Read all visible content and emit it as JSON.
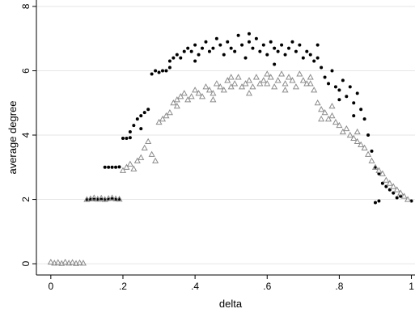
{
  "chart_data": {
    "type": "scatter",
    "xlabel": "delta",
    "ylabel": "average degree",
    "xlim": [
      -0.04,
      1.01
    ],
    "ylim": [
      -0.35,
      8.2
    ],
    "x_ticks": [
      {
        "value": 0,
        "label": "0"
      },
      {
        "value": 0.2,
        "label": ".2"
      },
      {
        "value": 0.4,
        "label": ".4"
      },
      {
        "value": 0.6,
        "label": ".6"
      },
      {
        "value": 0.8,
        "label": ".8"
      },
      {
        "value": 1,
        "label": "1"
      }
    ],
    "y_ticks": [
      {
        "value": 0,
        "label": "0"
      },
      {
        "value": 2,
        "label": "2"
      },
      {
        "value": 4,
        "label": "4"
      },
      {
        "value": 6,
        "label": "6"
      },
      {
        "value": 8,
        "label": "8"
      }
    ],
    "grid": {
      "horizontal": true,
      "color": "#e6e6e6"
    },
    "legend": "none",
    "series": [
      {
        "marker": "circle",
        "color": "#000000",
        "points": [
          [
            0.1,
            2.0
          ],
          [
            0.11,
            2.0
          ],
          [
            0.12,
            2.0
          ],
          [
            0.13,
            2.0
          ],
          [
            0.14,
            2.0
          ],
          [
            0.15,
            2.0
          ],
          [
            0.16,
            2.0
          ],
          [
            0.17,
            2.02
          ],
          [
            0.18,
            2.0
          ],
          [
            0.19,
            2.01
          ],
          [
            0.15,
            3.0
          ],
          [
            0.16,
            3.0
          ],
          [
            0.17,
            3.0
          ],
          [
            0.18,
            3.0
          ],
          [
            0.19,
            3.01
          ],
          [
            0.2,
            3.9
          ],
          [
            0.21,
            3.9
          ],
          [
            0.22,
            3.92
          ],
          [
            0.22,
            4.1
          ],
          [
            0.23,
            4.3
          ],
          [
            0.24,
            4.5
          ],
          [
            0.25,
            4.6
          ],
          [
            0.25,
            4.2
          ],
          [
            0.26,
            4.7
          ],
          [
            0.27,
            4.8
          ],
          [
            0.28,
            5.9
          ],
          [
            0.29,
            6.0
          ],
          [
            0.3,
            5.95
          ],
          [
            0.31,
            6.0
          ],
          [
            0.32,
            6.0
          ],
          [
            0.33,
            6.1
          ],
          [
            0.34,
            6.4
          ],
          [
            0.35,
            6.5
          ],
          [
            0.36,
            6.4
          ],
          [
            0.37,
            6.6
          ],
          [
            0.38,
            6.7
          ],
          [
            0.39,
            6.6
          ],
          [
            0.4,
            6.8
          ],
          [
            0.41,
            6.5
          ],
          [
            0.42,
            6.7
          ],
          [
            0.43,
            6.9
          ],
          [
            0.44,
            6.6
          ],
          [
            0.45,
            6.7
          ],
          [
            0.46,
            7.0
          ],
          [
            0.47,
            6.8
          ],
          [
            0.48,
            6.5
          ],
          [
            0.49,
            6.9
          ],
          [
            0.5,
            6.7
          ],
          [
            0.51,
            6.6
          ],
          [
            0.52,
            7.1
          ],
          [
            0.53,
            6.8
          ],
          [
            0.54,
            6.4
          ],
          [
            0.55,
            6.9
          ],
          [
            0.56,
            6.7
          ],
          [
            0.57,
            7.0
          ],
          [
            0.58,
            6.6
          ],
          [
            0.59,
            6.8
          ],
          [
            0.6,
            6.5
          ],
          [
            0.61,
            6.9
          ],
          [
            0.62,
            6.7
          ],
          [
            0.63,
            6.6
          ],
          [
            0.64,
            6.8
          ],
          [
            0.65,
            6.5
          ],
          [
            0.66,
            6.7
          ],
          [
            0.67,
            6.9
          ],
          [
            0.68,
            6.6
          ],
          [
            0.69,
            6.8
          ],
          [
            0.7,
            6.4
          ],
          [
            0.71,
            6.6
          ],
          [
            0.72,
            6.5
          ],
          [
            0.73,
            6.3
          ],
          [
            0.74,
            6.4
          ],
          [
            0.75,
            6.1
          ],
          [
            0.76,
            5.8
          ],
          [
            0.77,
            5.6
          ],
          [
            0.78,
            6.0
          ],
          [
            0.79,
            5.5
          ],
          [
            0.8,
            5.4
          ],
          [
            0.81,
            5.7
          ],
          [
            0.82,
            5.2
          ],
          [
            0.83,
            5.5
          ],
          [
            0.84,
            5.0
          ],
          [
            0.85,
            5.3
          ],
          [
            0.86,
            4.8
          ],
          [
            0.87,
            4.5
          ],
          [
            0.88,
            4.0
          ],
          [
            0.89,
            3.5
          ],
          [
            0.9,
            3.0
          ],
          [
            0.91,
            2.8
          ],
          [
            0.92,
            2.5
          ],
          [
            0.93,
            2.4
          ],
          [
            0.94,
            2.3
          ],
          [
            0.95,
            2.2
          ],
          [
            0.97,
            2.1
          ],
          [
            1.0,
            1.95
          ],
          [
            0.9,
            1.9
          ],
          [
            0.91,
            1.95
          ],
          [
            0.96,
            2.05
          ],
          [
            0.62,
            6.2
          ],
          [
            0.4,
            6.3
          ],
          [
            0.55,
            7.15
          ],
          [
            0.74,
            6.8
          ],
          [
            0.84,
            4.6
          ],
          [
            0.8,
            5.1
          ],
          [
            0.33,
            6.3
          ]
        ]
      },
      {
        "marker": "triangle",
        "color": "#8c8c8c",
        "points": [
          [
            0.0,
            0.05
          ],
          [
            0.01,
            0.02
          ],
          [
            0.02,
            0.04
          ],
          [
            0.03,
            0.01
          ],
          [
            0.04,
            0.05
          ],
          [
            0.05,
            0.02
          ],
          [
            0.06,
            0.04
          ],
          [
            0.07,
            0.01
          ],
          [
            0.08,
            0.03
          ],
          [
            0.09,
            0.02
          ],
          [
            0.1,
            2.0
          ],
          [
            0.11,
            2.02
          ],
          [
            0.12,
            2.05
          ],
          [
            0.13,
            2.01
          ],
          [
            0.14,
            2.04
          ],
          [
            0.15,
            2.0
          ],
          [
            0.16,
            2.03
          ],
          [
            0.17,
            2.05
          ],
          [
            0.18,
            2.02
          ],
          [
            0.19,
            2.01
          ],
          [
            0.2,
            2.9
          ],
          [
            0.21,
            3.0
          ],
          [
            0.22,
            3.1
          ],
          [
            0.23,
            2.95
          ],
          [
            0.24,
            3.2
          ],
          [
            0.25,
            3.3
          ],
          [
            0.26,
            3.6
          ],
          [
            0.27,
            3.8
          ],
          [
            0.28,
            3.4
          ],
          [
            0.29,
            3.2
          ],
          [
            0.3,
            4.4
          ],
          [
            0.31,
            4.5
          ],
          [
            0.32,
            4.6
          ],
          [
            0.33,
            4.7
          ],
          [
            0.34,
            5.0
          ],
          [
            0.35,
            5.1
          ],
          [
            0.36,
            5.2
          ],
          [
            0.37,
            5.3
          ],
          [
            0.38,
            5.1
          ],
          [
            0.39,
            5.2
          ],
          [
            0.4,
            5.4
          ],
          [
            0.41,
            5.3
          ],
          [
            0.42,
            5.2
          ],
          [
            0.43,
            5.5
          ],
          [
            0.44,
            5.4
          ],
          [
            0.45,
            5.3
          ],
          [
            0.46,
            5.6
          ],
          [
            0.47,
            5.5
          ],
          [
            0.48,
            5.4
          ],
          [
            0.49,
            5.7
          ],
          [
            0.5,
            5.5
          ],
          [
            0.51,
            5.6
          ],
          [
            0.52,
            5.8
          ],
          [
            0.53,
            5.5
          ],
          [
            0.54,
            5.6
          ],
          [
            0.55,
            5.7
          ],
          [
            0.56,
            5.5
          ],
          [
            0.57,
            5.8
          ],
          [
            0.58,
            5.6
          ],
          [
            0.59,
            5.7
          ],
          [
            0.6,
            5.6
          ],
          [
            0.61,
            5.8
          ],
          [
            0.62,
            5.5
          ],
          [
            0.63,
            5.7
          ],
          [
            0.64,
            5.9
          ],
          [
            0.65,
            5.6
          ],
          [
            0.66,
            5.8
          ],
          [
            0.67,
            5.7
          ],
          [
            0.68,
            5.5
          ],
          [
            0.69,
            5.9
          ],
          [
            0.7,
            5.7
          ],
          [
            0.71,
            5.6
          ],
          [
            0.72,
            5.8
          ],
          [
            0.73,
            5.4
          ],
          [
            0.74,
            5.0
          ],
          [
            0.75,
            4.8
          ],
          [
            0.76,
            4.7
          ],
          [
            0.77,
            4.5
          ],
          [
            0.78,
            4.6
          ],
          [
            0.79,
            4.4
          ],
          [
            0.8,
            4.3
          ],
          [
            0.81,
            4.1
          ],
          [
            0.82,
            4.2
          ],
          [
            0.83,
            4.0
          ],
          [
            0.84,
            3.9
          ],
          [
            0.85,
            3.8
          ],
          [
            0.86,
            3.7
          ],
          [
            0.87,
            3.6
          ],
          [
            0.88,
            3.4
          ],
          [
            0.89,
            3.2
          ],
          [
            0.9,
            3.0
          ],
          [
            0.91,
            2.9
          ],
          [
            0.92,
            2.8
          ],
          [
            0.93,
            2.6
          ],
          [
            0.94,
            2.5
          ],
          [
            0.95,
            2.4
          ],
          [
            0.96,
            2.3
          ],
          [
            0.97,
            2.2
          ],
          [
            0.98,
            2.1
          ],
          [
            0.99,
            2.0
          ],
          [
            0.35,
            4.9
          ],
          [
            0.45,
            5.1
          ],
          [
            0.55,
            5.3
          ],
          [
            0.65,
            5.4
          ],
          [
            0.75,
            4.5
          ],
          [
            0.72,
            5.6
          ],
          [
            0.78,
            4.9
          ],
          [
            0.85,
            4.1
          ],
          [
            0.6,
            5.9
          ],
          [
            0.5,
            5.8
          ]
        ]
      }
    ]
  }
}
